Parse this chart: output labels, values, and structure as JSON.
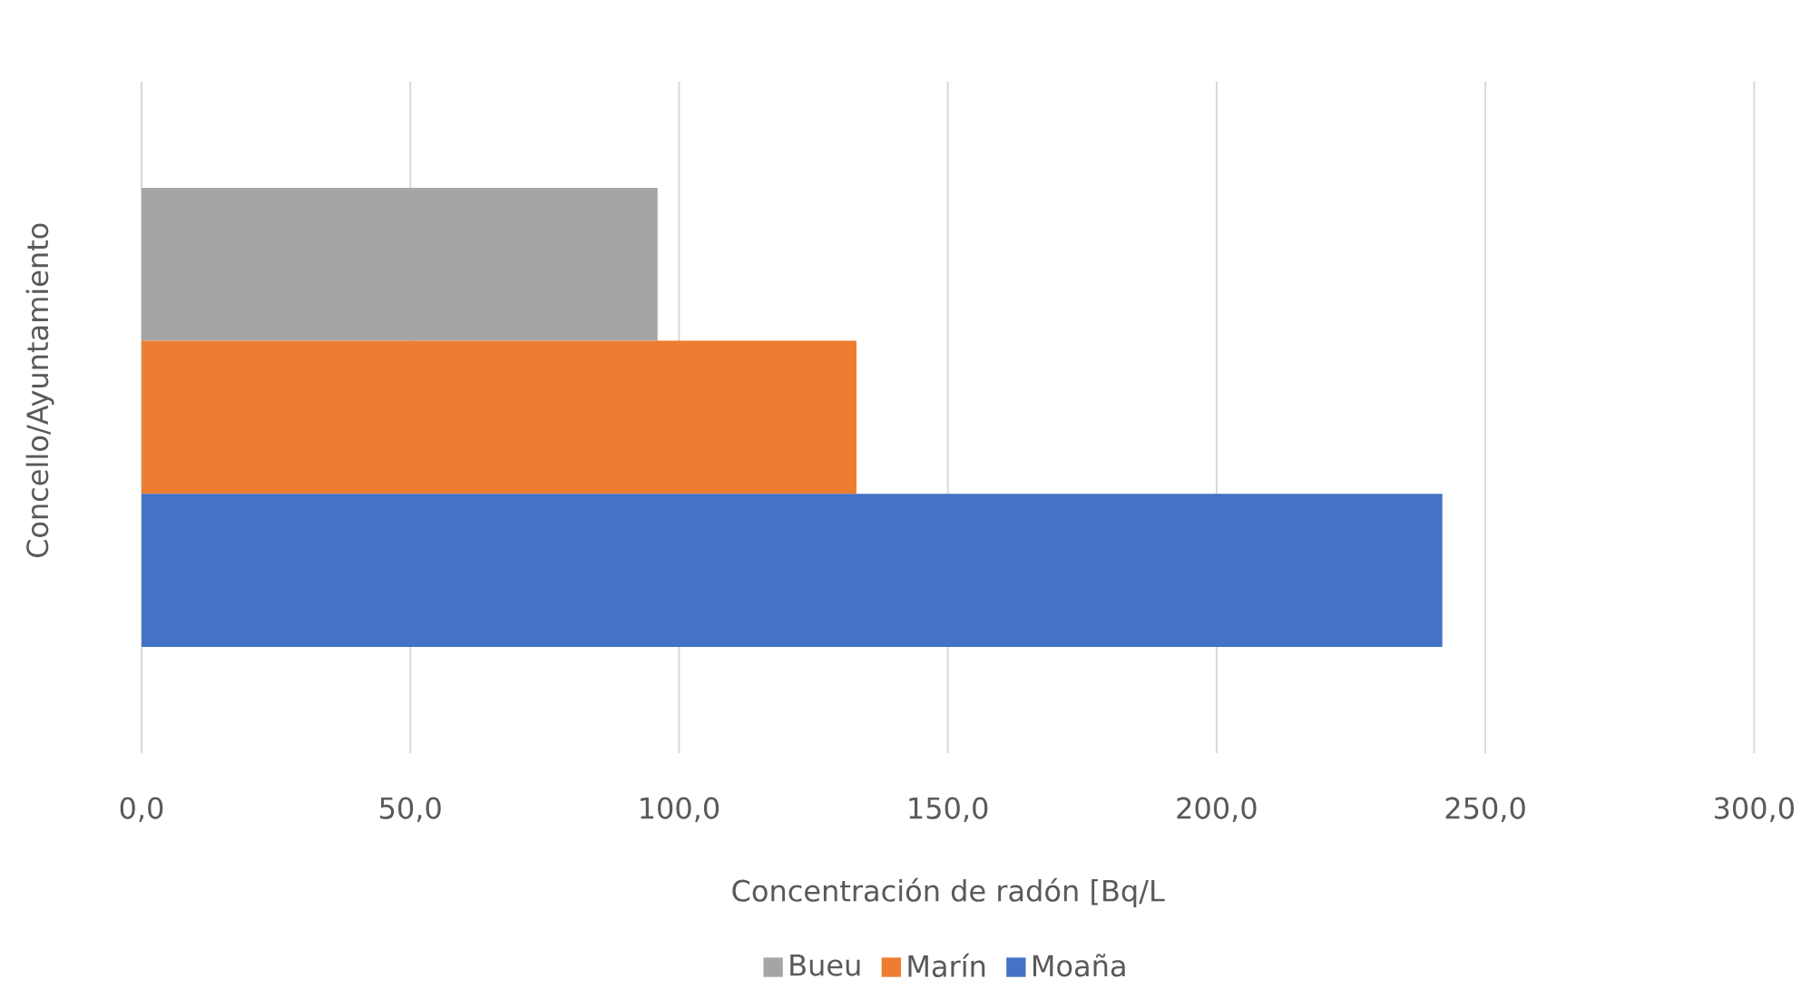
{
  "chart_data": {
    "type": "bar",
    "orientation": "horizontal",
    "xlabel": "Concentración de radón [Bq/L",
    "ylabel": "Concello/Ayuntamiento",
    "categories": [
      null
    ],
    "series": [
      {
        "name": "Bueu",
        "color": "#a5a5a5",
        "values": [
          96
        ]
      },
      {
        "name": "Marín",
        "color": "#ed7d31",
        "values": [
          133
        ]
      },
      {
        "name": "Moaña",
        "color": "#4472c4",
        "values": [
          242
        ]
      }
    ],
    "xlim": [
      0,
      300
    ],
    "xticks": [
      {
        "value": 0,
        "label": "0,0"
      },
      {
        "value": 50,
        "label": "50,0"
      },
      {
        "value": 100,
        "label": "100,0"
      },
      {
        "value": 150,
        "label": "150,0"
      },
      {
        "value": 200,
        "label": "200,0"
      },
      {
        "value": 250,
        "label": "250,0"
      },
      {
        "value": 300,
        "label": "300,0"
      }
    ],
    "grid": "x",
    "legend": "bottom"
  }
}
